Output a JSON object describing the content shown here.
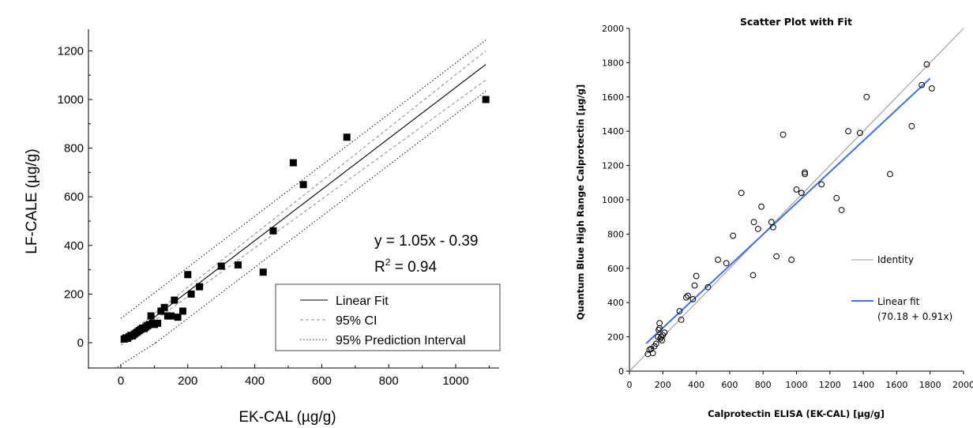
{
  "chart_data": [
    {
      "type": "scatter",
      "title": "",
      "xlabel": "EK-CAL (µg/g)",
      "ylabel": "LF-CALE (µg/g)",
      "xlim": [
        -100,
        1110
      ],
      "ylim": [
        -100,
        1290
      ],
      "x_ticks": [
        0,
        200,
        400,
        600,
        800,
        1000
      ],
      "y_ticks": [
        0,
        200,
        400,
        600,
        800,
        1000,
        1200
      ],
      "grid": false,
      "legend_position": "bottom-right",
      "annotation": {
        "equation": "y = 1.05x - 0.39",
        "r2_prefix": "R",
        "r2_sup": "2",
        "r2_suffix": " = 0.94"
      },
      "legend": [
        {
          "label": "Linear Fit",
          "style": "solid"
        },
        {
          "label": "95% CI",
          "style": "dashed"
        },
        {
          "label": "95% Prediction Interval",
          "style": "dotted"
        }
      ],
      "fit": {
        "slope": 1.05,
        "intercept": -0.39
      },
      "ci_band": {
        "x_start": 0,
        "x_end": 1090,
        "upper_start": 10,
        "upper_end": 1200,
        "lower_start": -10,
        "lower_end": 1080
      },
      "prediction_band": {
        "upper_slope": 1.05,
        "upper_intercept": 100,
        "lower_slope": 1.05,
        "lower_intercept": -110
      },
      "series": [
        {
          "marker": "square",
          "color": "#000000",
          "points": [
            [
              10,
              15
            ],
            [
              15,
              20
            ],
            [
              20,
              18
            ],
            [
              25,
              25
            ],
            [
              30,
              30
            ],
            [
              35,
              28
            ],
            [
              40,
              35
            ],
            [
              45,
              40
            ],
            [
              50,
              45
            ],
            [
              55,
              50
            ],
            [
              60,
              55
            ],
            [
              65,
              60
            ],
            [
              70,
              58
            ],
            [
              75,
              65
            ],
            [
              80,
              70
            ],
            [
              85,
              75
            ],
            [
              90,
              110
            ],
            [
              95,
              80
            ],
            [
              100,
              75
            ],
            [
              110,
              80
            ],
            [
              120,
              130
            ],
            [
              130,
              145
            ],
            [
              140,
              110
            ],
            [
              150,
              110
            ],
            [
              160,
              175
            ],
            [
              170,
              105
            ],
            [
              185,
              130
            ],
            [
              200,
              280
            ],
            [
              210,
              200
            ],
            [
              235,
              230
            ],
            [
              300,
              315
            ],
            [
              350,
              320
            ],
            [
              425,
              290
            ],
            [
              455,
              460
            ],
            [
              515,
              740
            ],
            [
              545,
              650
            ],
            [
              675,
              845
            ],
            [
              1090,
              1000
            ]
          ]
        }
      ]
    },
    {
      "type": "scatter",
      "title": "Scatter Plot with Fit",
      "xlabel": "Calprotectin ELISA (EK-CAL) [µg/g]",
      "ylabel": "Quantum Blue High Range Calprotectin [µg/g]",
      "xlim": [
        0,
        2000
      ],
      "ylim": [
        0,
        2000
      ],
      "x_ticks": [
        0,
        200,
        400,
        600,
        800,
        1000,
        1200,
        1400,
        1600,
        1800,
        2000
      ],
      "y_ticks": [
        0,
        200,
        400,
        600,
        800,
        1000,
        1200,
        1400,
        1600,
        1800,
        2000
      ],
      "grid": false,
      "legend_position": "right",
      "legend": [
        {
          "label": "Identity",
          "color": "#9a9a9a"
        },
        {
          "label": "Linear fit",
          "sub": "(70.18 + 0.91x)",
          "color": "#3b73e4"
        }
      ],
      "identity": {
        "x1": 0,
        "y1": 0,
        "x2": 2000,
        "y2": 2000
      },
      "fit": {
        "slope": 0.91,
        "intercept": 70.18,
        "x_start": 100,
        "x_end": 1800
      },
      "series": [
        {
          "marker": "circle",
          "color": "#000000",
          "points": [
            [
              110,
              100
            ],
            [
              120,
              125
            ],
            [
              130,
              130
            ],
            [
              140,
              105
            ],
            [
              150,
              145
            ],
            [
              160,
              160
            ],
            [
              170,
              200
            ],
            [
              175,
              240
            ],
            [
              180,
              280
            ],
            [
              180,
              250
            ],
            [
              185,
              190
            ],
            [
              190,
              200
            ],
            [
              195,
              180
            ],
            [
              200,
              210
            ],
            [
              210,
              225
            ],
            [
              300,
              350
            ],
            [
              310,
              300
            ],
            [
              340,
              430
            ],
            [
              350,
              440
            ],
            [
              380,
              420
            ],
            [
              390,
              500
            ],
            [
              400,
              555
            ],
            [
              470,
              490
            ],
            [
              530,
              650
            ],
            [
              580,
              630
            ],
            [
              620,
              790
            ],
            [
              670,
              1040
            ],
            [
              740,
              560
            ],
            [
              745,
              870
            ],
            [
              770,
              830
            ],
            [
              790,
              960
            ],
            [
              850,
              870
            ],
            [
              860,
              840
            ],
            [
              880,
              670
            ],
            [
              920,
              1380
            ],
            [
              970,
              650
            ],
            [
              1000,
              1060
            ],
            [
              1030,
              1040
            ],
            [
              1050,
              1150
            ],
            [
              1050,
              1160
            ],
            [
              1150,
              1090
            ],
            [
              1240,
              1010
            ],
            [
              1270,
              940
            ],
            [
              1310,
              1400
            ],
            [
              1380,
              1390
            ],
            [
              1420,
              1600
            ],
            [
              1560,
              1150
            ],
            [
              1690,
              1430
            ],
            [
              1750,
              1670
            ],
            [
              1780,
              1790
            ],
            [
              1810,
              1650
            ]
          ]
        }
      ]
    }
  ]
}
